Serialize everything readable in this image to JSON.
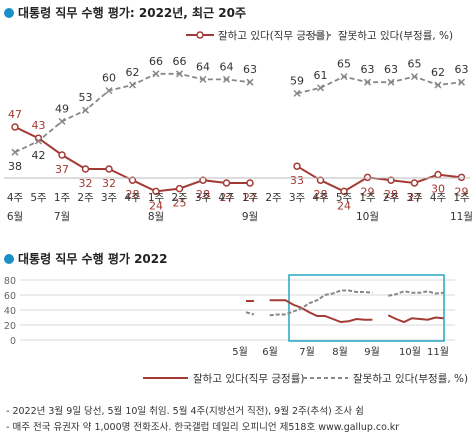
{
  "chart_data": [
    {
      "type": "line",
      "title": "대통령 직무 수행 평가: 2022년, 최근 20주",
      "weeks": [
        "4주",
        "5주",
        "1주",
        "2주",
        "3주",
        "4주",
        "1주",
        "2주",
        "3주",
        "4주",
        "1주",
        "2주",
        "3주",
        "4주",
        "5주",
        "1주",
        "2주",
        "3주",
        "4주",
        "1주"
      ],
      "months": [
        {
          "label": "6월",
          "index": 0
        },
        {
          "label": "7월",
          "index": 2
        },
        {
          "label": "8월",
          "index": 6
        },
        {
          "label": "9월",
          "index": 10
        },
        {
          "label": "10월",
          "index": 15
        },
        {
          "label": "11월",
          "index": 19
        }
      ],
      "series": [
        {
          "name": "잘하고 있다(직무 긍정률)",
          "color": "#a33a34",
          "values": [
            47,
            43,
            37,
            32,
            32,
            28,
            24,
            25,
            28,
            27,
            27,
            null,
            33,
            28,
            24,
            29,
            28,
            27,
            30,
            29
          ]
        },
        {
          "name": "잘못하고 있다(부정률, %)",
          "color": "#888888",
          "values": [
            38,
            42,
            49,
            53,
            60,
            62,
            66,
            66,
            64,
            64,
            63,
            null,
            59,
            61,
            65,
            63,
            63,
            65,
            62,
            63
          ]
        }
      ],
      "legend_position": "top-right"
    },
    {
      "type": "line",
      "title": "대통령 직무 수행 평가 2022",
      "ylim": [
        0,
        80
      ],
      "yticks": [
        "80",
        "60",
        "40",
        "20",
        "0"
      ],
      "xticks": [
        "5월",
        "6월",
        "7월",
        "8월",
        "9월",
        "10월",
        "11월"
      ],
      "series": [
        {
          "name": "잘하고 있다(직무 긍정률)",
          "color": "#a33a34",
          "values": [
            52,
            52,
            null,
            53,
            53,
            53,
            47,
            43,
            37,
            32,
            32,
            28,
            24,
            25,
            28,
            27,
            27,
            null,
            33,
            28,
            24,
            29,
            28,
            27,
            30,
            29
          ]
        },
        {
          "name": "잘못하고 있다(부정률, %)",
          "color": "#888888",
          "values": [
            37,
            34,
            null,
            33,
            34,
            34,
            38,
            42,
            49,
            53,
            60,
            62,
            66,
            66,
            64,
            64,
            63,
            null,
            59,
            61,
            65,
            63,
            63,
            65,
            62,
            63
          ]
        }
      ],
      "legend_position": "bottom"
    }
  ],
  "notes": [
    "- 2022년 3월 9일 당선, 5월 10일 취임. 5월 4주(지방선거 직전), 9월 2주(추석) 조사 쉼",
    "- 매주 전국 유권자 약 1,000명 전화조사. 한국갤럽 데일리 오피니언 제518호 www.gallup.co.kr"
  ]
}
